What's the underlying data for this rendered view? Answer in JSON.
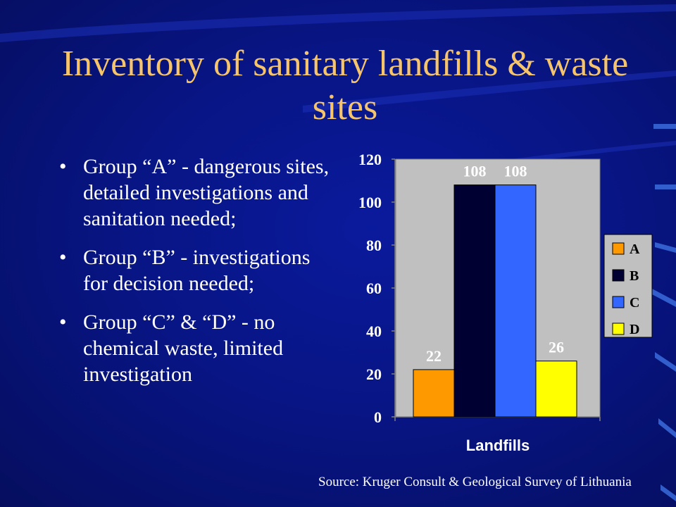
{
  "slide": {
    "title": "Inventory of sanitary landfills & waste sites",
    "bullets": [
      "Group “A” - dangerous sites, detailed investigations and sanitation needed;",
      "Group “B” - investigations for decision needed;",
      "Group “C” & “D” - no chemical waste, limited investigation"
    ],
    "source": "Source: Kruger Consult & Geological Survey of Lithuania"
  },
  "chart_data": {
    "type": "bar",
    "title": "",
    "xlabel": "Landfills",
    "ylabel": "",
    "ylim": [
      0,
      120
    ],
    "yticks": [
      0,
      20,
      40,
      60,
      80,
      100,
      120
    ],
    "grid": false,
    "legend_position": "right",
    "plot_background": "#c0c0c0",
    "series": [
      {
        "name": "A",
        "values": [
          22
        ],
        "color": "#ff9900"
      },
      {
        "name": "B",
        "values": [
          108
        ],
        "color": "#000033"
      },
      {
        "name": "C",
        "values": [
          108
        ],
        "color": "#3366ff"
      },
      {
        "name": "D",
        "values": [
          26
        ],
        "color": "#ffff00"
      }
    ]
  },
  "colors": {
    "background": "#0a1a9c",
    "title": "#f5c46b",
    "text": "#ffffff"
  }
}
